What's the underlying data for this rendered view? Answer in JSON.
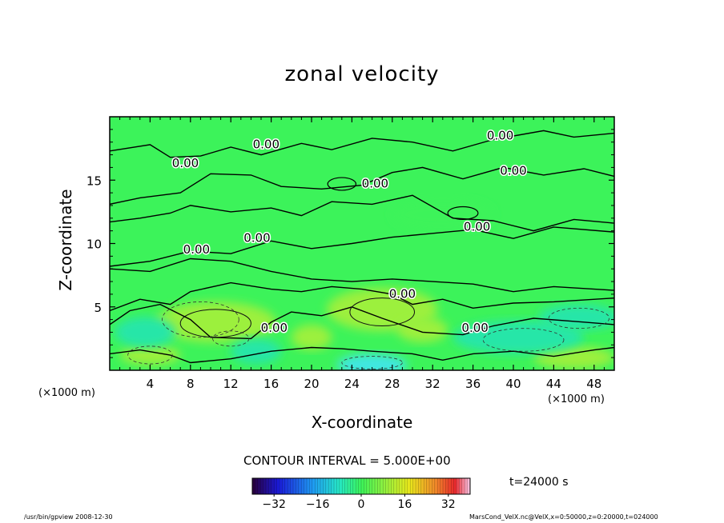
{
  "chart_data": {
    "type": "heatmap",
    "title": "zonal velocity",
    "xlabel": "X-coordinate",
    "ylabel": "Z-coordinate",
    "x_unit_left": "(×1000 m)",
    "x_unit_right": "(×1000 m)",
    "xlim": [
      0,
      50
    ],
    "ylim": [
      0,
      20
    ],
    "x_ticks": [
      4,
      8,
      12,
      16,
      20,
      24,
      28,
      32,
      36,
      40,
      44,
      48
    ],
    "y_ticks": [
      5,
      10,
      15
    ],
    "contour_interval_text": "CONTOUR INTERVAL = 5.000E+00",
    "contour_label": "0.00",
    "contour_label_positions": [
      {
        "x": 15.5,
        "y": 17.8
      },
      {
        "x": 7.5,
        "y": 16.3
      },
      {
        "x": 38.7,
        "y": 18.5
      },
      {
        "x": 40.0,
        "y": 15.7
      },
      {
        "x": 26.3,
        "y": 14.7
      },
      {
        "x": 36.4,
        "y": 11.3
      },
      {
        "x": 14.6,
        "y": 10.4
      },
      {
        "x": 8.6,
        "y": 9.5
      },
      {
        "x": 29.0,
        "y": 6.0
      },
      {
        "x": 16.3,
        "y": 3.3
      },
      {
        "x": 36.2,
        "y": 3.3
      }
    ],
    "colorbar": {
      "min": -40,
      "max": 40,
      "ticks": [
        -32,
        -16,
        0,
        16,
        32
      ],
      "tick_labels": [
        "−32",
        "−16",
        "0",
        "16",
        "32"
      ]
    },
    "time_label": "t=24000 s",
    "colors": {
      "background_field": "#3cf35a",
      "positive_field": "#9cf03c",
      "negative_field": "#27e6a8",
      "strong_negative": "#3fe7e0"
    }
  },
  "footer": {
    "left": "/usr/bin/gpview   2008-12-30",
    "right": "MarsCond_VelX.nc@VelX,x=0:50000,z=0:20000,t=024000"
  }
}
